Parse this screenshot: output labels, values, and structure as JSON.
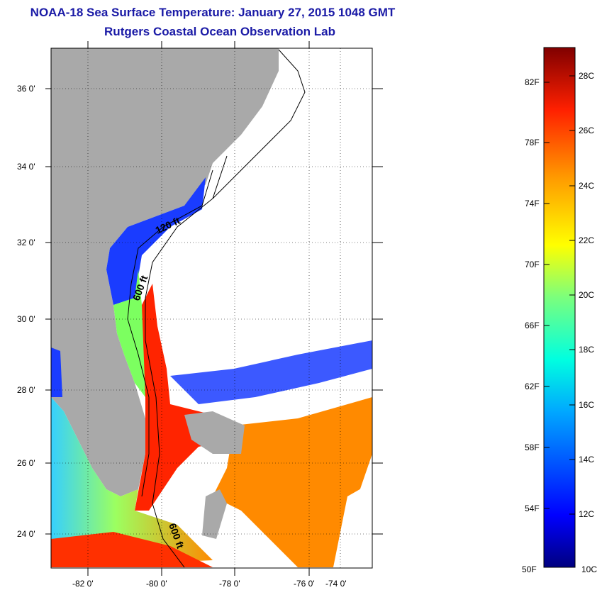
{
  "title": "NOAA-18 Sea Surface Temperature:  January 27, 2015 1048 GMT",
  "subtitle": "Rutgers Coastal Ocean Observation Lab",
  "map": {
    "lat_labels": [
      "36 0'",
      "34 0'",
      "32 0'",
      "30 0'",
      "28 0'",
      "26 0'",
      "24 0'"
    ],
    "lon_labels": [
      "-82 0'",
      "-80 0'",
      "-78 0'",
      "-76 0'",
      "-74 0'"
    ],
    "contour_labels": [
      "120 ft",
      "600 ft",
      "600 ft"
    ]
  },
  "colorbar": {
    "fahrenheit": [
      "82F",
      "78F",
      "74F",
      "70F",
      "66F",
      "62F",
      "58F",
      "54F",
      "50F"
    ],
    "celsius": [
      "28C",
      "26C",
      "24C",
      "22C",
      "20C",
      "18C",
      "16C",
      "14C",
      "12C",
      "10C"
    ]
  },
  "colors": {
    "title": "#1a1aa6",
    "land": "#a9a9a9",
    "cloud": "#ffffff"
  }
}
